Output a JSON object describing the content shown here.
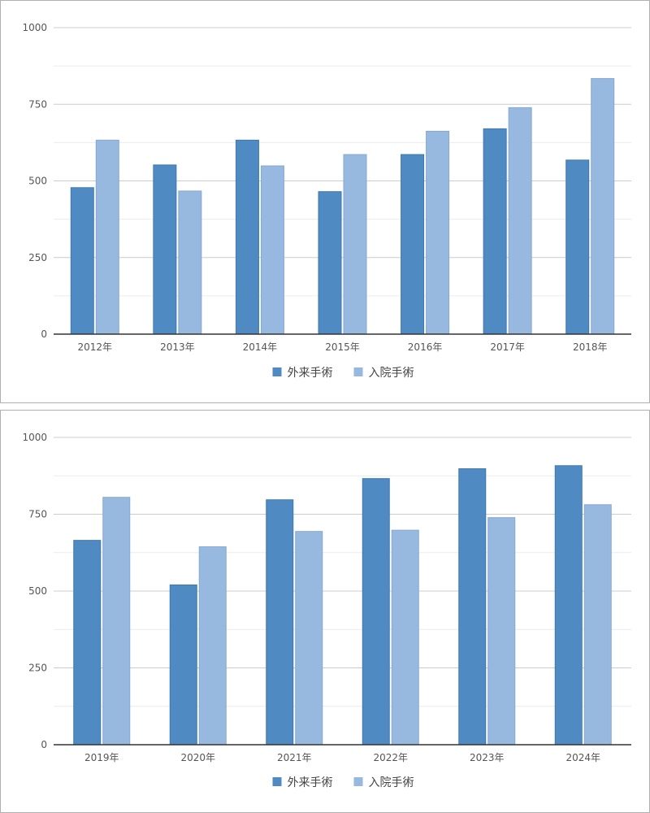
{
  "colors": {
    "outpatient": "#4f8bc2",
    "inpatient": "#97b8df"
  },
  "legend": {
    "outpatient": "外来手術",
    "inpatient": "入院手術"
  },
  "chart_data": [
    {
      "type": "bar",
      "categories": [
        "2012年",
        "2013年",
        "2014年",
        "2015年",
        "2016年",
        "2017年",
        "2018年"
      ],
      "series": [
        {
          "name": "外来手術",
          "values": [
            478,
            552,
            633,
            465,
            586,
            670,
            568
          ]
        },
        {
          "name": "入院手術",
          "values": [
            633,
            467,
            549,
            586,
            662,
            739,
            834
          ]
        }
      ],
      "ylim": [
        0,
        1000
      ],
      "yticks": [
        "0",
        "250",
        "500",
        "750",
        "1000"
      ],
      "grid": true,
      "legend_position": "bottom"
    },
    {
      "type": "bar",
      "categories": [
        "2019年",
        "2020年",
        "2021年",
        "2022年",
        "2023年",
        "2024年"
      ],
      "series": [
        {
          "name": "外来手術",
          "values": [
            665,
            520,
            797,
            866,
            898,
            908
          ]
        },
        {
          "name": "入院手術",
          "values": [
            805,
            644,
            694,
            698,
            739,
            781
          ]
        }
      ],
      "ylim": [
        0,
        1000
      ],
      "yticks": [
        "0",
        "250",
        "500",
        "750",
        "1000"
      ],
      "grid": true,
      "legend_position": "bottom"
    }
  ]
}
